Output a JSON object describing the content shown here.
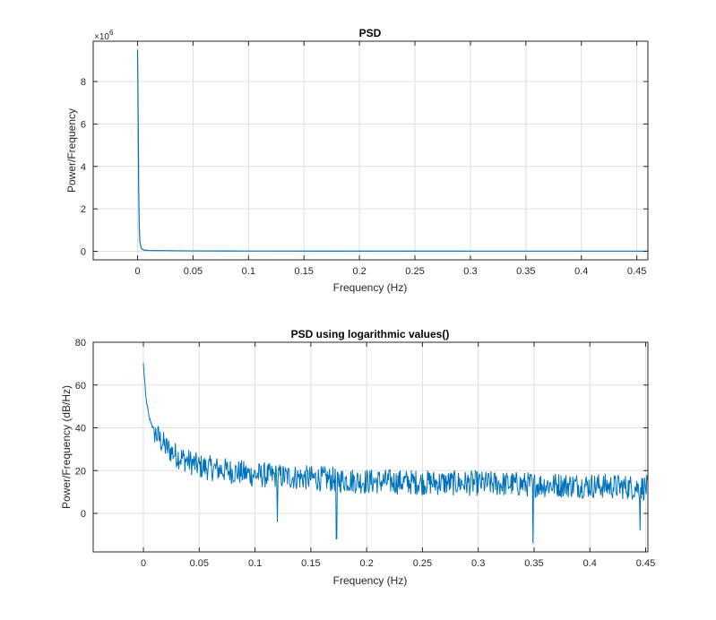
{
  "chart_data": [
    {
      "type": "line",
      "title": "PSD",
      "xlabel": "Frequency (Hz)",
      "ylabel": "Power/Frequency",
      "y_exponent_label": "×10",
      "y_exponent_power": "6",
      "xlim": [
        -0.04,
        0.46
      ],
      "ylim": [
        -0.4,
        9.9
      ],
      "xticks": [
        0,
        0.05,
        0.1,
        0.15,
        0.2,
        0.25,
        0.3,
        0.35,
        0.4,
        0.45
      ],
      "xtick_labels": [
        "0",
        "0.05",
        "0.1",
        "0.15",
        "0.2",
        "0.25",
        "0.3",
        "0.35",
        "0.4",
        "0.45"
      ],
      "yticks": [
        0,
        2,
        4,
        6,
        8
      ],
      "ytick_labels": [
        "0",
        "2",
        "4",
        "6",
        "8"
      ],
      "grid": true,
      "color": "#0072BD",
      "series": [
        {
          "x": [
            0,
            0.0005,
            0.001,
            0.0015,
            0.002,
            0.003,
            0.004,
            0.006,
            0.01,
            0.05,
            0.1,
            0.2,
            0.3,
            0.4,
            0.46
          ],
          "y": [
            9.5,
            6.5,
            3.0,
            1.2,
            0.5,
            0.2,
            0.1,
            0.06,
            0.04,
            0.02,
            0.015,
            0.012,
            0.01,
            0.01,
            0.01
          ]
        }
      ]
    },
    {
      "type": "line",
      "title": "PSD using logarithmic values()",
      "xlabel": "Frequency (Hz)",
      "ylabel": "Power/Frequency (dB/Hz)",
      "xlim": [
        -0.045,
        0.452
      ],
      "ylim": [
        -18,
        80
      ],
      "xticks": [
        0,
        0.05,
        0.1,
        0.15,
        0.2,
        0.25,
        0.3,
        0.35,
        0.4,
        0.45
      ],
      "xtick_labels": [
        "0",
        "0.05",
        "0.1",
        "0.15",
        "0.2",
        "0.25",
        "0.3",
        "0.35",
        "0.4",
        "0.45"
      ],
      "yticks": [
        0,
        20,
        40,
        60,
        80
      ],
      "ytick_labels": [
        "0",
        "20",
        "40",
        "60",
        "80"
      ],
      "grid": true,
      "color": "#0072BD",
      "trend": {
        "x": [
          0,
          0.002,
          0.005,
          0.01,
          0.02,
          0.03,
          0.05,
          0.1,
          0.2,
          0.3,
          0.4,
          0.45
        ],
        "y": [
          70,
          55,
          45,
          38,
          31,
          27,
          22,
          18,
          15,
          14,
          13,
          12
        ]
      },
      "dips": [
        {
          "x": 0.12,
          "y": -4
        },
        {
          "x": 0.173,
          "y": -12
        },
        {
          "x": 0.349,
          "y": -14
        },
        {
          "x": 0.445,
          "y": -8
        }
      ]
    }
  ]
}
